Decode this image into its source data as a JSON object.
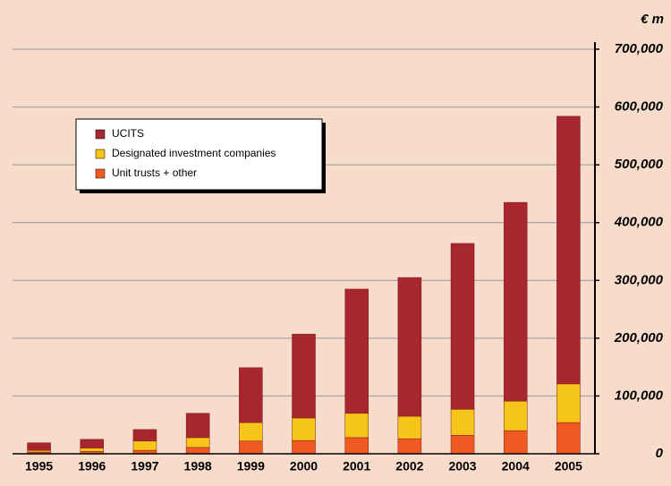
{
  "chart_data": {
    "type": "bar",
    "stacked": true,
    "y_axis_label": "€ m",
    "categories": [
      "1995",
      "1996",
      "1997",
      "1998",
      "1999",
      "2000",
      "2001",
      "2002",
      "2003",
      "2004",
      "2005"
    ],
    "series": [
      {
        "name": "UCITS",
        "color": "#a8262e",
        "values": [
          13000,
          15000,
          20000,
          42000,
          95000,
          145000,
          215000,
          240000,
          287000,
          344000,
          463000
        ]
      },
      {
        "name": "Designated investment companies",
        "color": "#f5c518",
        "values": [
          3000,
          6000,
          16000,
          17000,
          32000,
          39000,
          42000,
          39000,
          45000,
          51000,
          67000
        ]
      },
      {
        "name": "Unit trusts + other",
        "color": "#f05a22",
        "values": [
          3000,
          4000,
          6000,
          11000,
          22000,
          23000,
          28000,
          26000,
          32000,
          40000,
          54000
        ]
      }
    ],
    "ylim": [
      0,
      700000
    ],
    "yticks": [
      0,
      {
        "value": 100000,
        "label": "100,000"
      },
      {
        "value": 200000,
        "label": "200,000"
      },
      {
        "value": 300000,
        "label": "300,000"
      },
      {
        "value": 400000,
        "label": "400,000"
      },
      {
        "value": 500000,
        "label": "500,000"
      },
      {
        "value": 600000,
        "label": "600,000"
      },
      {
        "value": 700000,
        "label": "700,000"
      }
    ],
    "grid": true,
    "legend": "upper left"
  }
}
